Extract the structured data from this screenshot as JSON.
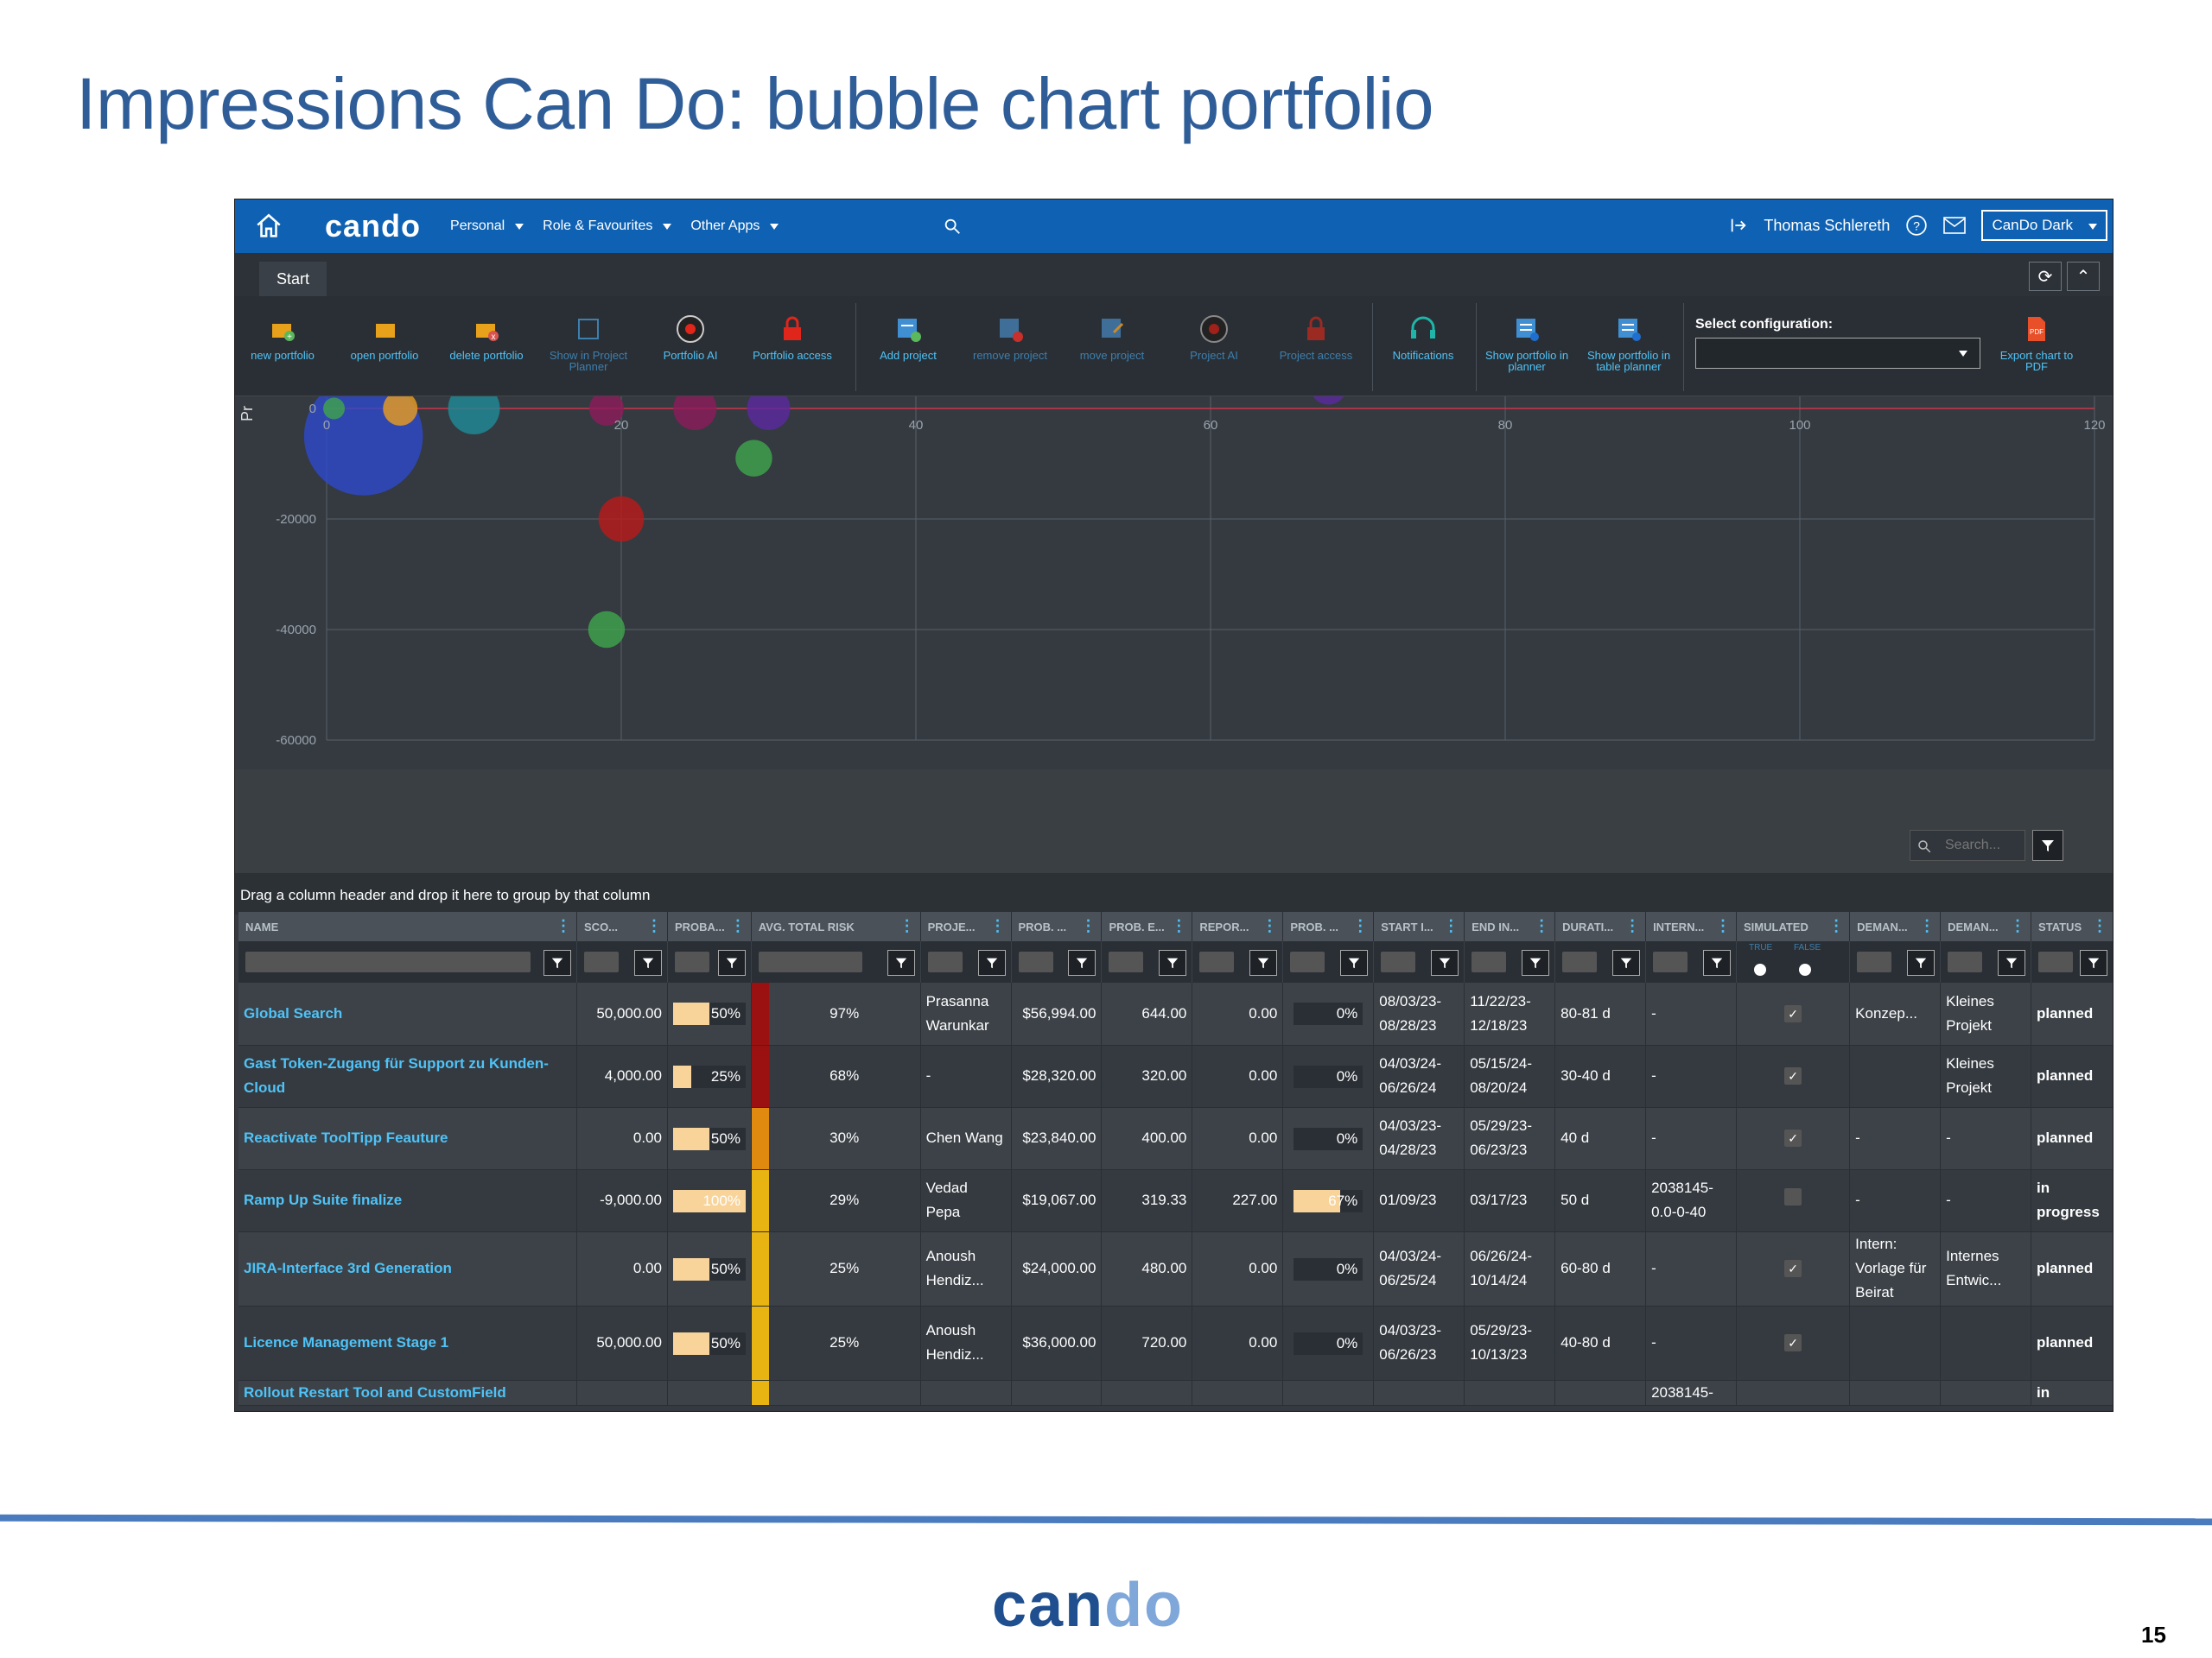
{
  "slide": {
    "title": "Impressions Can Do: bubble chart portfolio",
    "page_number": "15",
    "footer_logo_main": "can",
    "footer_logo_accent": "do"
  },
  "topbar": {
    "logo": "cando",
    "menus": [
      "Personal",
      "Role & Favourites",
      "Other Apps"
    ],
    "user": "Thomas Schlereth",
    "theme": "CanDo Dark"
  },
  "tabs": {
    "start": "Start"
  },
  "ribbon": {
    "buttons": [
      {
        "label": "new portfolio",
        "icon": "new-portfolio-icon"
      },
      {
        "label": "open portfolio",
        "icon": "open-portfolio-icon"
      },
      {
        "label": "delete portfolio",
        "icon": "delete-portfolio-icon"
      },
      {
        "label": "Show in Project Planner",
        "icon": "project-planner-icon"
      },
      {
        "label": "Portfolio AI",
        "icon": "ai-icon"
      },
      {
        "label": "Portfolio access",
        "icon": "lock-icon"
      },
      {
        "label": "Add project",
        "icon": "add-project-icon"
      },
      {
        "label": "remove project",
        "icon": "remove-project-icon"
      },
      {
        "label": "move project",
        "icon": "move-project-icon"
      },
      {
        "label": "Project AI",
        "icon": "ai-icon"
      },
      {
        "label": "Project access",
        "icon": "lock-icon"
      },
      {
        "label": "Notifications",
        "icon": "headset-icon"
      },
      {
        "label": "Show portfolio in planner",
        "icon": "planner-icon"
      },
      {
        "label": "Show portfolio in table planner",
        "icon": "table-planner-icon"
      },
      {
        "label": "Export chart to PDF",
        "icon": "pdf-icon"
      }
    ],
    "config_label": "Select configuration:"
  },
  "chart_data": {
    "type": "scatter",
    "subtype": "bubble",
    "x_ticks": [
      "0",
      "20",
      "40",
      "60",
      "80",
      "100",
      "120"
    ],
    "y_ticks": [
      "0",
      "-20000",
      "-40000",
      "-60000"
    ],
    "xlim": [
      0,
      120
    ],
    "ylim": [
      -60000,
      5000
    ],
    "ylabel_fragment": "Pr",
    "grid": true,
    "points": [
      {
        "x": 2.5,
        "y": -5000,
        "size": 55,
        "color": "#2e49c9"
      },
      {
        "x": 0.5,
        "y": 0,
        "size": 10,
        "color": "#3fa34d"
      },
      {
        "x": 5,
        "y": 0,
        "size": 16,
        "color": "#e89c1f"
      },
      {
        "x": 10,
        "y": 0,
        "size": 24,
        "color": "#1e8a96"
      },
      {
        "x": 19,
        "y": 0,
        "size": 16,
        "color": "#8c1c5c"
      },
      {
        "x": 25,
        "y": 0,
        "size": 20,
        "color": "#8c1c5c"
      },
      {
        "x": 30,
        "y": 0,
        "size": 20,
        "color": "#5a2aa0"
      },
      {
        "x": 29,
        "y": -9000,
        "size": 17,
        "color": "#3fa34d"
      },
      {
        "x": 20,
        "y": -20000,
        "size": 21,
        "color": "#b81b1b"
      },
      {
        "x": 19,
        "y": -40000,
        "size": 17,
        "color": "#3fa34d"
      },
      {
        "x": 68,
        "y": 4000,
        "size": 17,
        "color": "#5a2aa0"
      }
    ]
  },
  "grid": {
    "search_placeholder": "Search...",
    "group_hint": "Drag a column header and drop it here to group by that column",
    "columns": [
      "NAME",
      "SCO...",
      "PROBA...",
      "AVG. TOTAL RISK",
      "PROJE...",
      "PROB. ...",
      "PROB. E...",
      "REPOR...",
      "PROB. ...",
      "START I...",
      "END IN...",
      "DURATI...",
      "INTERN...",
      "SIMULATED",
      "DEMAN...",
      "DEMAN...",
      "STATUS"
    ],
    "sim_true": "TRUE",
    "sim_false": "FALSE",
    "rows": [
      {
        "name": "Global Search",
        "score": "50,000.00",
        "prob": "50%",
        "prob_val": 0.5,
        "risk_color": "#9b1010",
        "avg_risk": "97%",
        "pm": "Prasanna Warunkar",
        "pe": "$56,994.00",
        "pe2": "644.00",
        "rep": "0.00",
        "prog": "0%",
        "prog_val": 0,
        "start": "08/03/23- 08/28/23",
        "end": "11/22/23- 12/18/23",
        "dur": "80-81 d",
        "int": "-",
        "sim": "✓",
        "d1": "Konzep...",
        "d2": "Kleines Projekt",
        "status": "planned"
      },
      {
        "name": "Gast Token-Zugang für Support zu Kunden-Cloud",
        "score": "4,000.00",
        "prob": "25%",
        "prob_val": 0.25,
        "risk_color": "#9b1010",
        "avg_risk": "68%",
        "pm": "-",
        "pe": "$28,320.00",
        "pe2": "320.00",
        "rep": "0.00",
        "prog": "0%",
        "prog_val": 0,
        "start": "04/03/24- 06/26/24",
        "end": "05/15/24- 08/20/24",
        "dur": "30-40 d",
        "int": "-",
        "sim": "✓",
        "d1": "",
        "d2": "Kleines Projekt",
        "status": "planned"
      },
      {
        "name": "Reactivate ToolTipp Feauture",
        "score": "0.00",
        "prob": "50%",
        "prob_val": 0.5,
        "risk_color": "#e08a10",
        "avg_risk": "30%",
        "pm": "Chen Wang",
        "pe": "$23,840.00",
        "pe2": "400.00",
        "rep": "0.00",
        "prog": "0%",
        "prog_val": 0,
        "start": "04/03/23- 04/28/23",
        "end": "05/29/23- 06/23/23",
        "dur": "40 d",
        "int": "-",
        "sim": "✓",
        "d1": "-",
        "d2": "-",
        "status": "planned"
      },
      {
        "name": "Ramp Up Suite finalize",
        "score": "-9,000.00",
        "prob": "100%",
        "prob_val": 1,
        "risk_color": "#e8b412",
        "avg_risk": "29%",
        "pm": "Vedad Pepa",
        "pe": "$19,067.00",
        "pe2": "319.33",
        "rep": "227.00",
        "prog": "67%",
        "prog_val": 0.67,
        "start": "01/09/23",
        "end": "03/17/23",
        "dur": "50 d",
        "int": "2038145- 0.0-0-40",
        "sim": "",
        "d1": "-",
        "d2": "-",
        "status": "in progress"
      },
      {
        "name": "JIRA-Interface 3rd Generation",
        "score": "0.00",
        "prob": "50%",
        "prob_val": 0.5,
        "risk_color": "#e8b412",
        "avg_risk": "25%",
        "pm": "Anoush Hendiz...",
        "pe": "$24,000.00",
        "pe2": "480.00",
        "rep": "0.00",
        "prog": "0%",
        "prog_val": 0,
        "start": "04/03/24- 06/25/24",
        "end": "06/26/24- 10/14/24",
        "dur": "60-80 d",
        "int": "-",
        "sim": "✓",
        "d1": "Intern: Vorlage für Beirat",
        "d2": "Internes Entwic...",
        "status": "planned"
      },
      {
        "name": "Licence Management Stage 1",
        "score": "50,000.00",
        "prob": "50%",
        "prob_val": 0.5,
        "risk_color": "#e8b412",
        "avg_risk": "25%",
        "pm": "Anoush Hendiz...",
        "pe": "$36,000.00",
        "pe2": "720.00",
        "rep": "0.00",
        "prog": "0%",
        "prog_val": 0,
        "start": "04/03/23- 06/26/23",
        "end": "05/29/23- 10/13/23",
        "dur": "40-80 d",
        "int": "-",
        "sim": "✓",
        "d1": "",
        "d2": "",
        "status": "planned"
      },
      {
        "name": "Rollout Restart Tool and CustomField",
        "score": "",
        "prob": "",
        "prob_val": 0,
        "risk_color": "#e8b412",
        "avg_risk": "",
        "pm": "",
        "pe": "",
        "pe2": "",
        "rep": "",
        "prog": "",
        "prog_val": 0,
        "start": "",
        "end": "",
        "dur": "",
        "int": "2038145-",
        "sim": "",
        "d1": "",
        "d2": "",
        "status": "in"
      }
    ]
  }
}
